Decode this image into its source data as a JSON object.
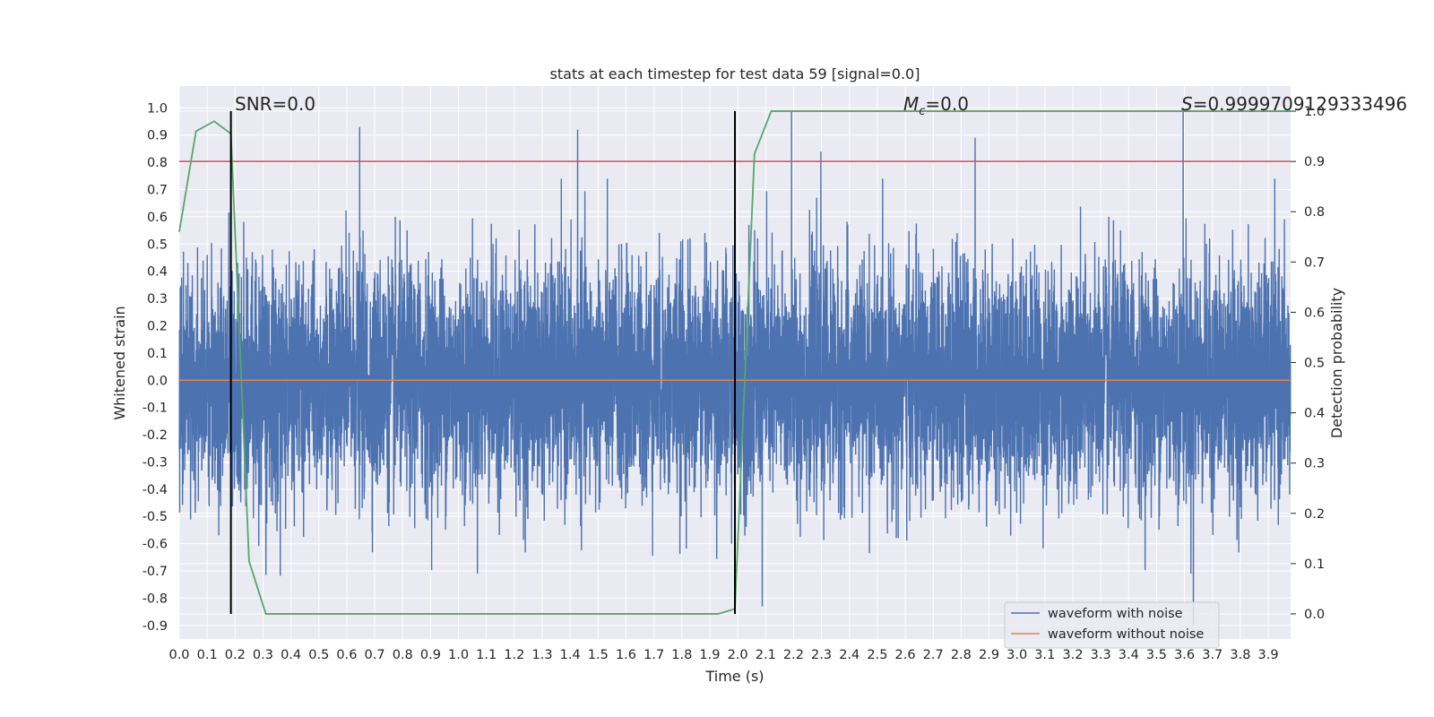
{
  "chart_data": {
    "type": "line",
    "title": "stats at each timestep for test data 59 [signal=0.0]",
    "xlabel": "Time (s)",
    "ylabel": "Whitened strain",
    "y2label": "Detection probability",
    "xlim": [
      0.0,
      3.98
    ],
    "ylim": [
      -0.95,
      1.08
    ],
    "y2lim": [
      -0.05,
      1.05
    ],
    "x_ticks": [
      "0.0",
      "0.1",
      "0.2",
      "0.3",
      "0.4",
      "0.5",
      "0.6",
      "0.7",
      "0.8",
      "0.9",
      "1.0",
      "1.1",
      "1.2",
      "1.3",
      "1.4",
      "1.5",
      "1.6",
      "1.7",
      "1.8",
      "1.9",
      "2.0",
      "2.1",
      "2.2",
      "2.3",
      "2.4",
      "2.5",
      "2.6",
      "2.7",
      "2.8",
      "2.9",
      "3.0",
      "3.1",
      "3.2",
      "3.3",
      "3.4",
      "3.5",
      "3.6",
      "3.7",
      "3.8",
      "3.9"
    ],
    "y_ticks": [
      "1.0",
      "0.9",
      "0.8",
      "0.7",
      "0.6",
      "0.5",
      "0.4",
      "0.3",
      "0.2",
      "0.1",
      "0.0",
      "-0.1",
      "-0.2",
      "-0.3",
      "-0.4",
      "-0.5",
      "-0.6",
      "-0.7",
      "-0.8",
      "-0.9"
    ],
    "y2_ticks": [
      "1.0",
      "0.9",
      "0.8",
      "0.7",
      "0.6",
      "0.5",
      "0.4",
      "0.3",
      "0.2",
      "0.1",
      "0.0"
    ],
    "grid": true,
    "legend_position": "bottom-right",
    "series": [
      {
        "name": "waveform with noise",
        "color": "#4c72b0",
        "axis": "left",
        "sample_rate": 2048,
        "std": 0.21,
        "seed": 59,
        "peaks": [
          {
            "x": 0.646,
            "y": 0.93
          },
          {
            "x": 1.427,
            "y": 0.92
          },
          {
            "x": 2.193,
            "y": 0.99
          },
          {
            "x": 2.298,
            "y": 0.84
          },
          {
            "x": 2.85,
            "y": 0.89
          },
          {
            "x": 3.595,
            "y": 1.0
          },
          {
            "x": 3.632,
            "y": -0.9
          },
          {
            "x": 2.088,
            "y": -0.83
          }
        ]
      },
      {
        "name": "waveform without noise",
        "color": "#dd8452",
        "axis": "left",
        "x": [
          0.0,
          3.98
        ],
        "y": [
          0.0,
          0.0
        ]
      },
      {
        "name": "",
        "color": "#55a868",
        "axis": "right",
        "x": [
          0.0,
          0.06,
          0.125,
          0.185,
          0.25,
          0.31,
          0.375,
          0.5,
          1.0,
          1.5,
          1.93,
          1.99,
          2.06,
          2.12,
          2.5,
          3.0,
          3.5,
          3.98
        ],
        "y": [
          0.76,
          0.96,
          0.98,
          0.955,
          0.105,
          0.0,
          0.0,
          0.0,
          0.0,
          0.0,
          0.0,
          0.01,
          0.915,
          1.0,
          1.0,
          1.0,
          1.0,
          1.0
        ]
      }
    ],
    "threshold_line": {
      "axis": "right",
      "y": 0.9,
      "color": "#c44e52"
    },
    "vertical_lines": [
      {
        "x": 0.185
      },
      {
        "x": 1.99
      }
    ],
    "annotations": {
      "snr": "SNR=0.0",
      "mc_symbol": "M",
      "mc_sub": "c",
      "mc_value": "=0.0",
      "s_symbol": "S",
      "s_value": "=0.9999709129333496"
    }
  }
}
